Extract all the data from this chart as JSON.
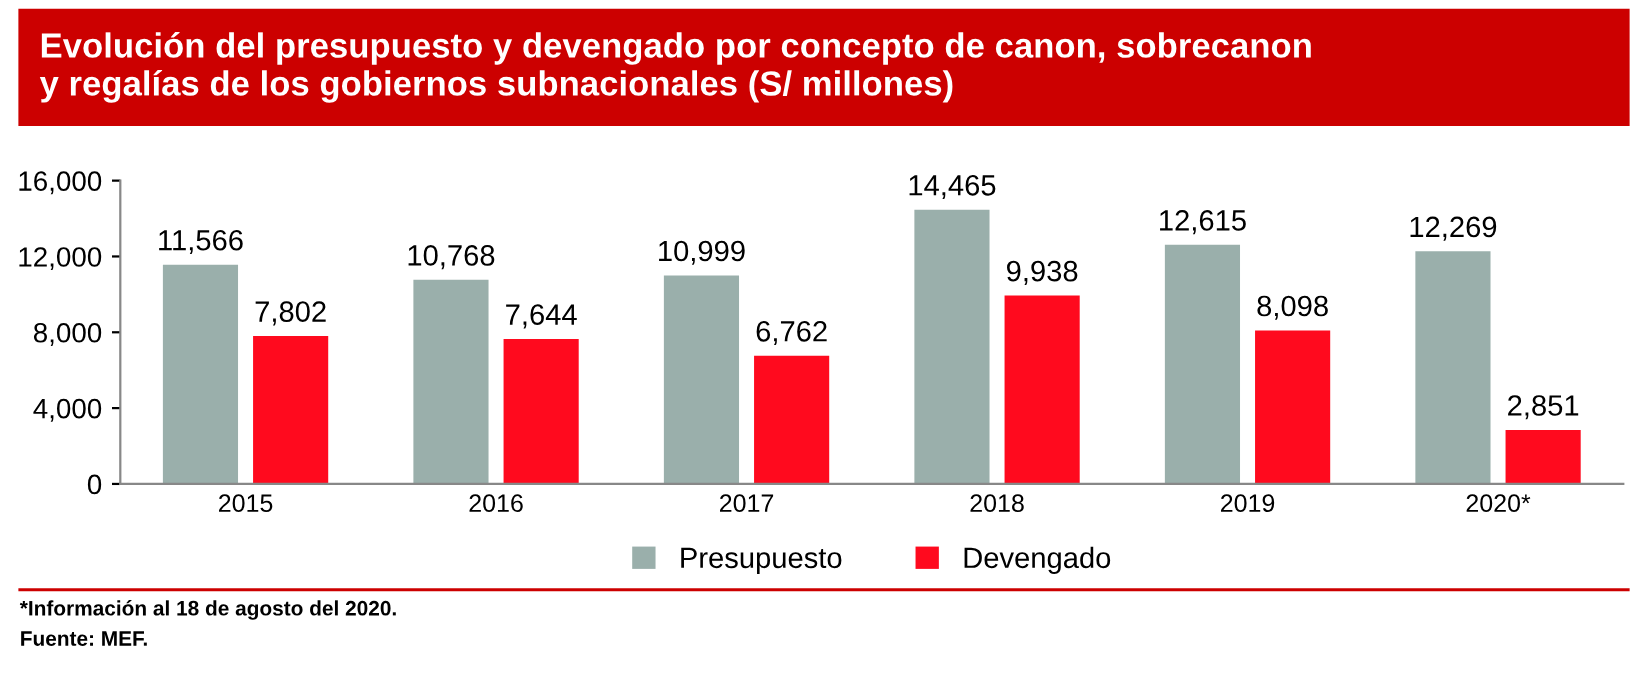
{
  "chart_data": {
    "type": "bar",
    "title": "Evolución del presupuesto y devengado por concepto de canon, sobrecanon\ny regalías de los gobiernos subnacionales (S/ millones)",
    "categories": [
      "2015",
      "2016",
      "2017",
      "2018",
      "2019",
      "2020*"
    ],
    "series": [
      {
        "name": "Presupuesto",
        "color": "#9aafab",
        "values": [
          11566,
          10768,
          10999,
          14465,
          12615,
          12269
        ],
        "value_labels": [
          "11,566",
          "10,768",
          "10,999",
          "14,465",
          "12,615",
          "12,269"
        ]
      },
      {
        "name": "Devengado",
        "color": "#ff0a1e",
        "values": [
          7802,
          7644,
          6762,
          9938,
          8098,
          2851
        ],
        "value_labels": [
          "7,802",
          "7,644",
          "6,762",
          "9,938",
          "8,098",
          "2,851"
        ]
      }
    ],
    "ylim": [
      0,
      16000
    ],
    "yticks": [
      {
        "value": 0,
        "label": "0"
      },
      {
        "value": 4000,
        "label": "4,000"
      },
      {
        "value": 8000,
        "label": "8,000"
      },
      {
        "value": 12000,
        "label": "12,000"
      },
      {
        "value": 16000,
        "label": "16,000"
      }
    ],
    "grid": false,
    "legend": "bottom",
    "annotations": [
      "*Información al 18 de agosto del 2020.",
      "Fuente: MEF."
    ]
  }
}
